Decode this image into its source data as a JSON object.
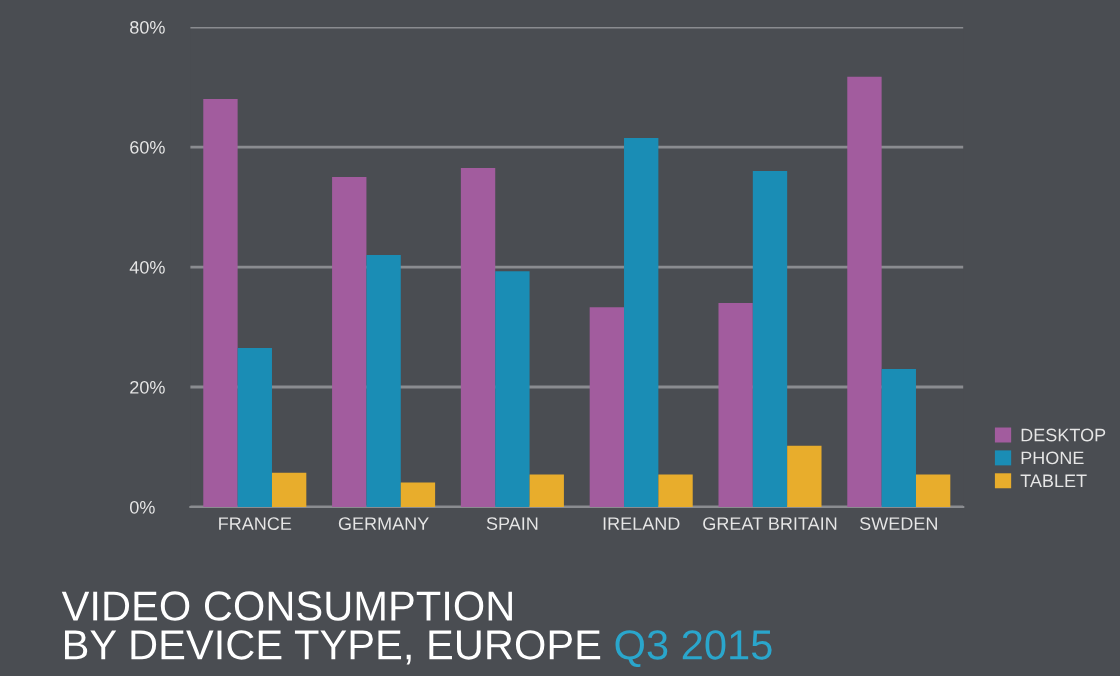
{
  "chart_data": {
    "type": "bar",
    "title": "VIDEO CONSUMPTION\nBY DEVICE TYPE, EUROPE",
    "subtitle": "Q3 2015",
    "categories": [
      "FRANCE",
      "GERMANY",
      "SPAIN",
      "IRELAND",
      "GREAT BRITAIN",
      "SWEDEN"
    ],
    "series": [
      {
        "name": "DESKTOP",
        "color": "#a25c9e",
        "values": [
          68,
          55,
          56.5,
          33.3,
          34,
          71.7
        ]
      },
      {
        "name": "PHONE",
        "color": "#1a8db5",
        "values": [
          26.5,
          42,
          39.3,
          61.5,
          56,
          23
        ]
      },
      {
        "name": "TABLET",
        "color": "#e8ad2c",
        "values": [
          5.7,
          4.1,
          5.4,
          5.4,
          10.2,
          5.4
        ]
      }
    ],
    "ylim": [
      0,
      80
    ],
    "yticks": [
      {
        "value": 0,
        "label": "0%"
      },
      {
        "value": 20,
        "label": "20%"
      },
      {
        "value": 40,
        "label": "40%"
      },
      {
        "value": 60,
        "label": "60%"
      },
      {
        "value": 80,
        "label": "80%"
      }
    ],
    "grid": "y",
    "legend": "bottom right"
  }
}
